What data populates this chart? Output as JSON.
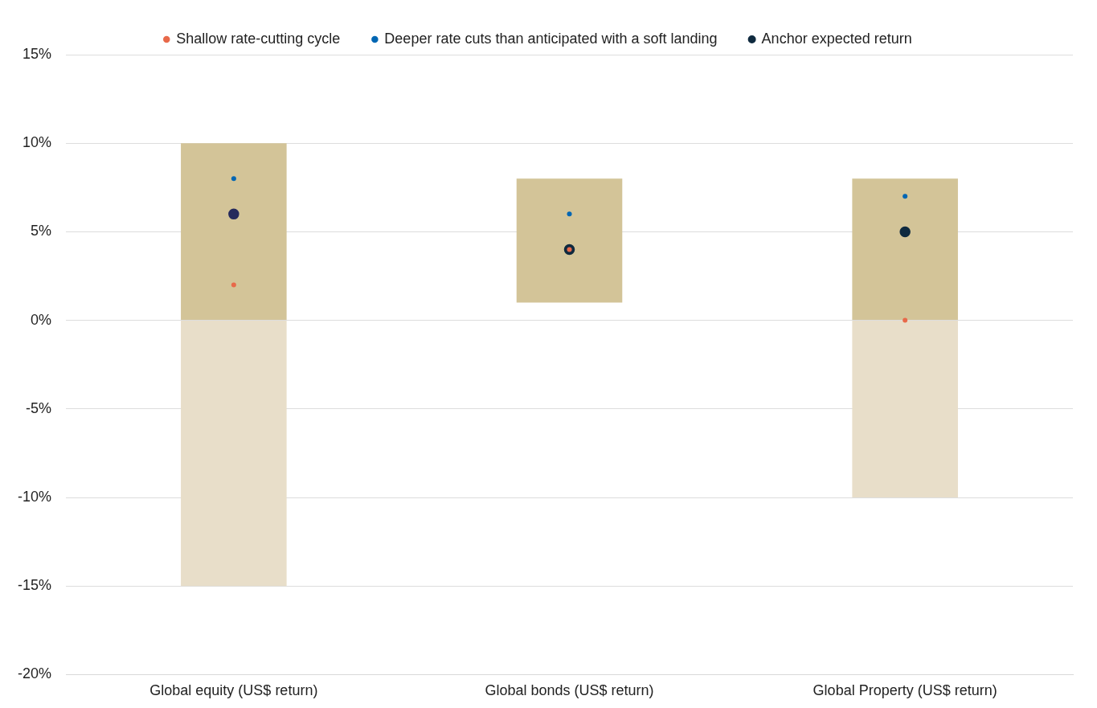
{
  "chart_data": {
    "type": "bar",
    "categories": [
      "Global equity (US$ return)",
      "Global bonds (US$ return)",
      "Global Property (US$ return)"
    ],
    "series": [
      {
        "color": "#d3c498",
        "base": [
          0,
          1,
          0
        ],
        "values": [
          10,
          7,
          8
        ]
      },
      {
        "color": "#e8dec9",
        "base": [
          0,
          null,
          0
        ],
        "values": [
          -15,
          null,
          -10
        ]
      },
      {
        "type": "scatter",
        "name": "Shallow rate-cutting cycle",
        "color": "#e8694a",
        "values": [
          2,
          4,
          0
        ]
      },
      {
        "type": "scatter",
        "name": "Deeper rate cuts than anticipated with a soft landing",
        "color": "#0066b3",
        "values": [
          8,
          6,
          7
        ]
      },
      {
        "type": "scatter",
        "name": "Anchor expected return",
        "color": "#0f2a3f",
        "colors": [
          "#252a5c",
          "#0f2a3f",
          "#0f2a3f"
        ],
        "values": [
          6,
          4,
          5
        ]
      }
    ],
    "ylim": [
      -20,
      15
    ],
    "yticks": [
      {
        "value": -20,
        "label": "-20%"
      },
      {
        "value": -15,
        "label": "-15%"
      },
      {
        "value": -10,
        "label": "-10%"
      },
      {
        "value": -5,
        "label": "-5%"
      },
      {
        "value": 0,
        "label": "0%"
      },
      {
        "value": 5,
        "label": "5%"
      },
      {
        "value": 10,
        "label": "10%"
      },
      {
        "value": 15,
        "label": "15%"
      }
    ],
    "grid": "y",
    "legend": "top",
    "marker": "circle"
  }
}
